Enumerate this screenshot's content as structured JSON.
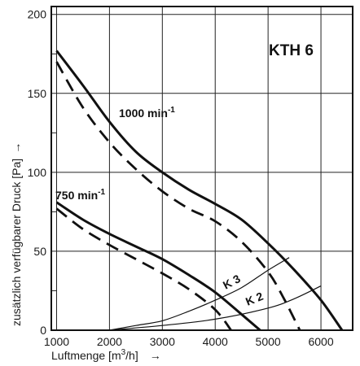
{
  "chart_data": {
    "type": "line",
    "title": "KTH 6",
    "xlabel": "Luftmenge [m³/h]",
    "xlabel_parts": {
      "pre": "Luftmenge [m",
      "sup": "3",
      "post": "/h]",
      "arrow": "→"
    },
    "ylabel": "zusätzlich verfügbarer Druck [Pa]",
    "ylabel_arrow": "→",
    "xlim": [
      900,
      6600
    ],
    "ylim": [
      0,
      205
    ],
    "x_ticks": [
      1000,
      2000,
      3000,
      4000,
      5000,
      6000
    ],
    "x_tick_labels": [
      "1000",
      "2000",
      "3000",
      "4000",
      "5000",
      "6000"
    ],
    "y_ticks": [
      0,
      50,
      100,
      150,
      200
    ],
    "y_tick_labels": [
      "0",
      "50",
      "100",
      "150",
      "200"
    ],
    "grid": true,
    "annotations": {
      "speed_1000": {
        "base": "1000 min",
        "sup": "-1"
      },
      "speed_750": {
        "base": "750 min",
        "sup": "-1"
      },
      "k3": "K 3",
      "k2": "K 2"
    },
    "series": [
      {
        "style": "solid",
        "width": 3,
        "color": "#111111",
        "x": [
          1000,
          1500,
          2000,
          2500,
          3000,
          3500,
          4000,
          4500,
          5000,
          5500,
          6000,
          6400
        ],
        "y": [
          177,
          155,
          132,
          113,
          100,
          89,
          80,
          70,
          55,
          38,
          19,
          0
        ]
      },
      {
        "style": "dashed",
        "width": 2.8,
        "color": "#111111",
        "x": [
          1000,
          1500,
          2000,
          2500,
          3000,
          3500,
          4000,
          4500,
          5000,
          5300,
          5600
        ],
        "y": [
          170,
          141,
          119,
          102,
          88,
          77,
          69,
          56,
          37,
          20,
          0
        ]
      },
      {
        "style": "solid",
        "width": 3,
        "color": "#111111",
        "x": [
          1000,
          1500,
          2000,
          2500,
          3000,
          3500,
          4000,
          4500,
          4850
        ],
        "y": [
          81,
          70,
          61,
          53,
          45,
          35,
          24,
          10,
          0
        ]
      },
      {
        "style": "dashed",
        "width": 2.8,
        "color": "#111111",
        "x": [
          1000,
          1500,
          2000,
          2500,
          3000,
          3500,
          4000,
          4300
        ],
        "y": [
          77,
          64,
          54,
          45,
          36,
          26,
          13,
          0
        ]
      },
      {
        "style": "solid",
        "width": 1.2,
        "color": "#111111",
        "x": [
          2000,
          2500,
          3000,
          3500,
          4000,
          4500,
          5000,
          5400
        ],
        "y": [
          0,
          3,
          6,
          12,
          19,
          27,
          38,
          46
        ]
      },
      {
        "style": "solid",
        "width": 1.2,
        "color": "#111111",
        "x": [
          2000,
          3000,
          4000,
          5000,
          5500,
          6000
        ],
        "y": [
          0,
          3,
          7,
          14,
          20,
          28
        ]
      }
    ]
  }
}
